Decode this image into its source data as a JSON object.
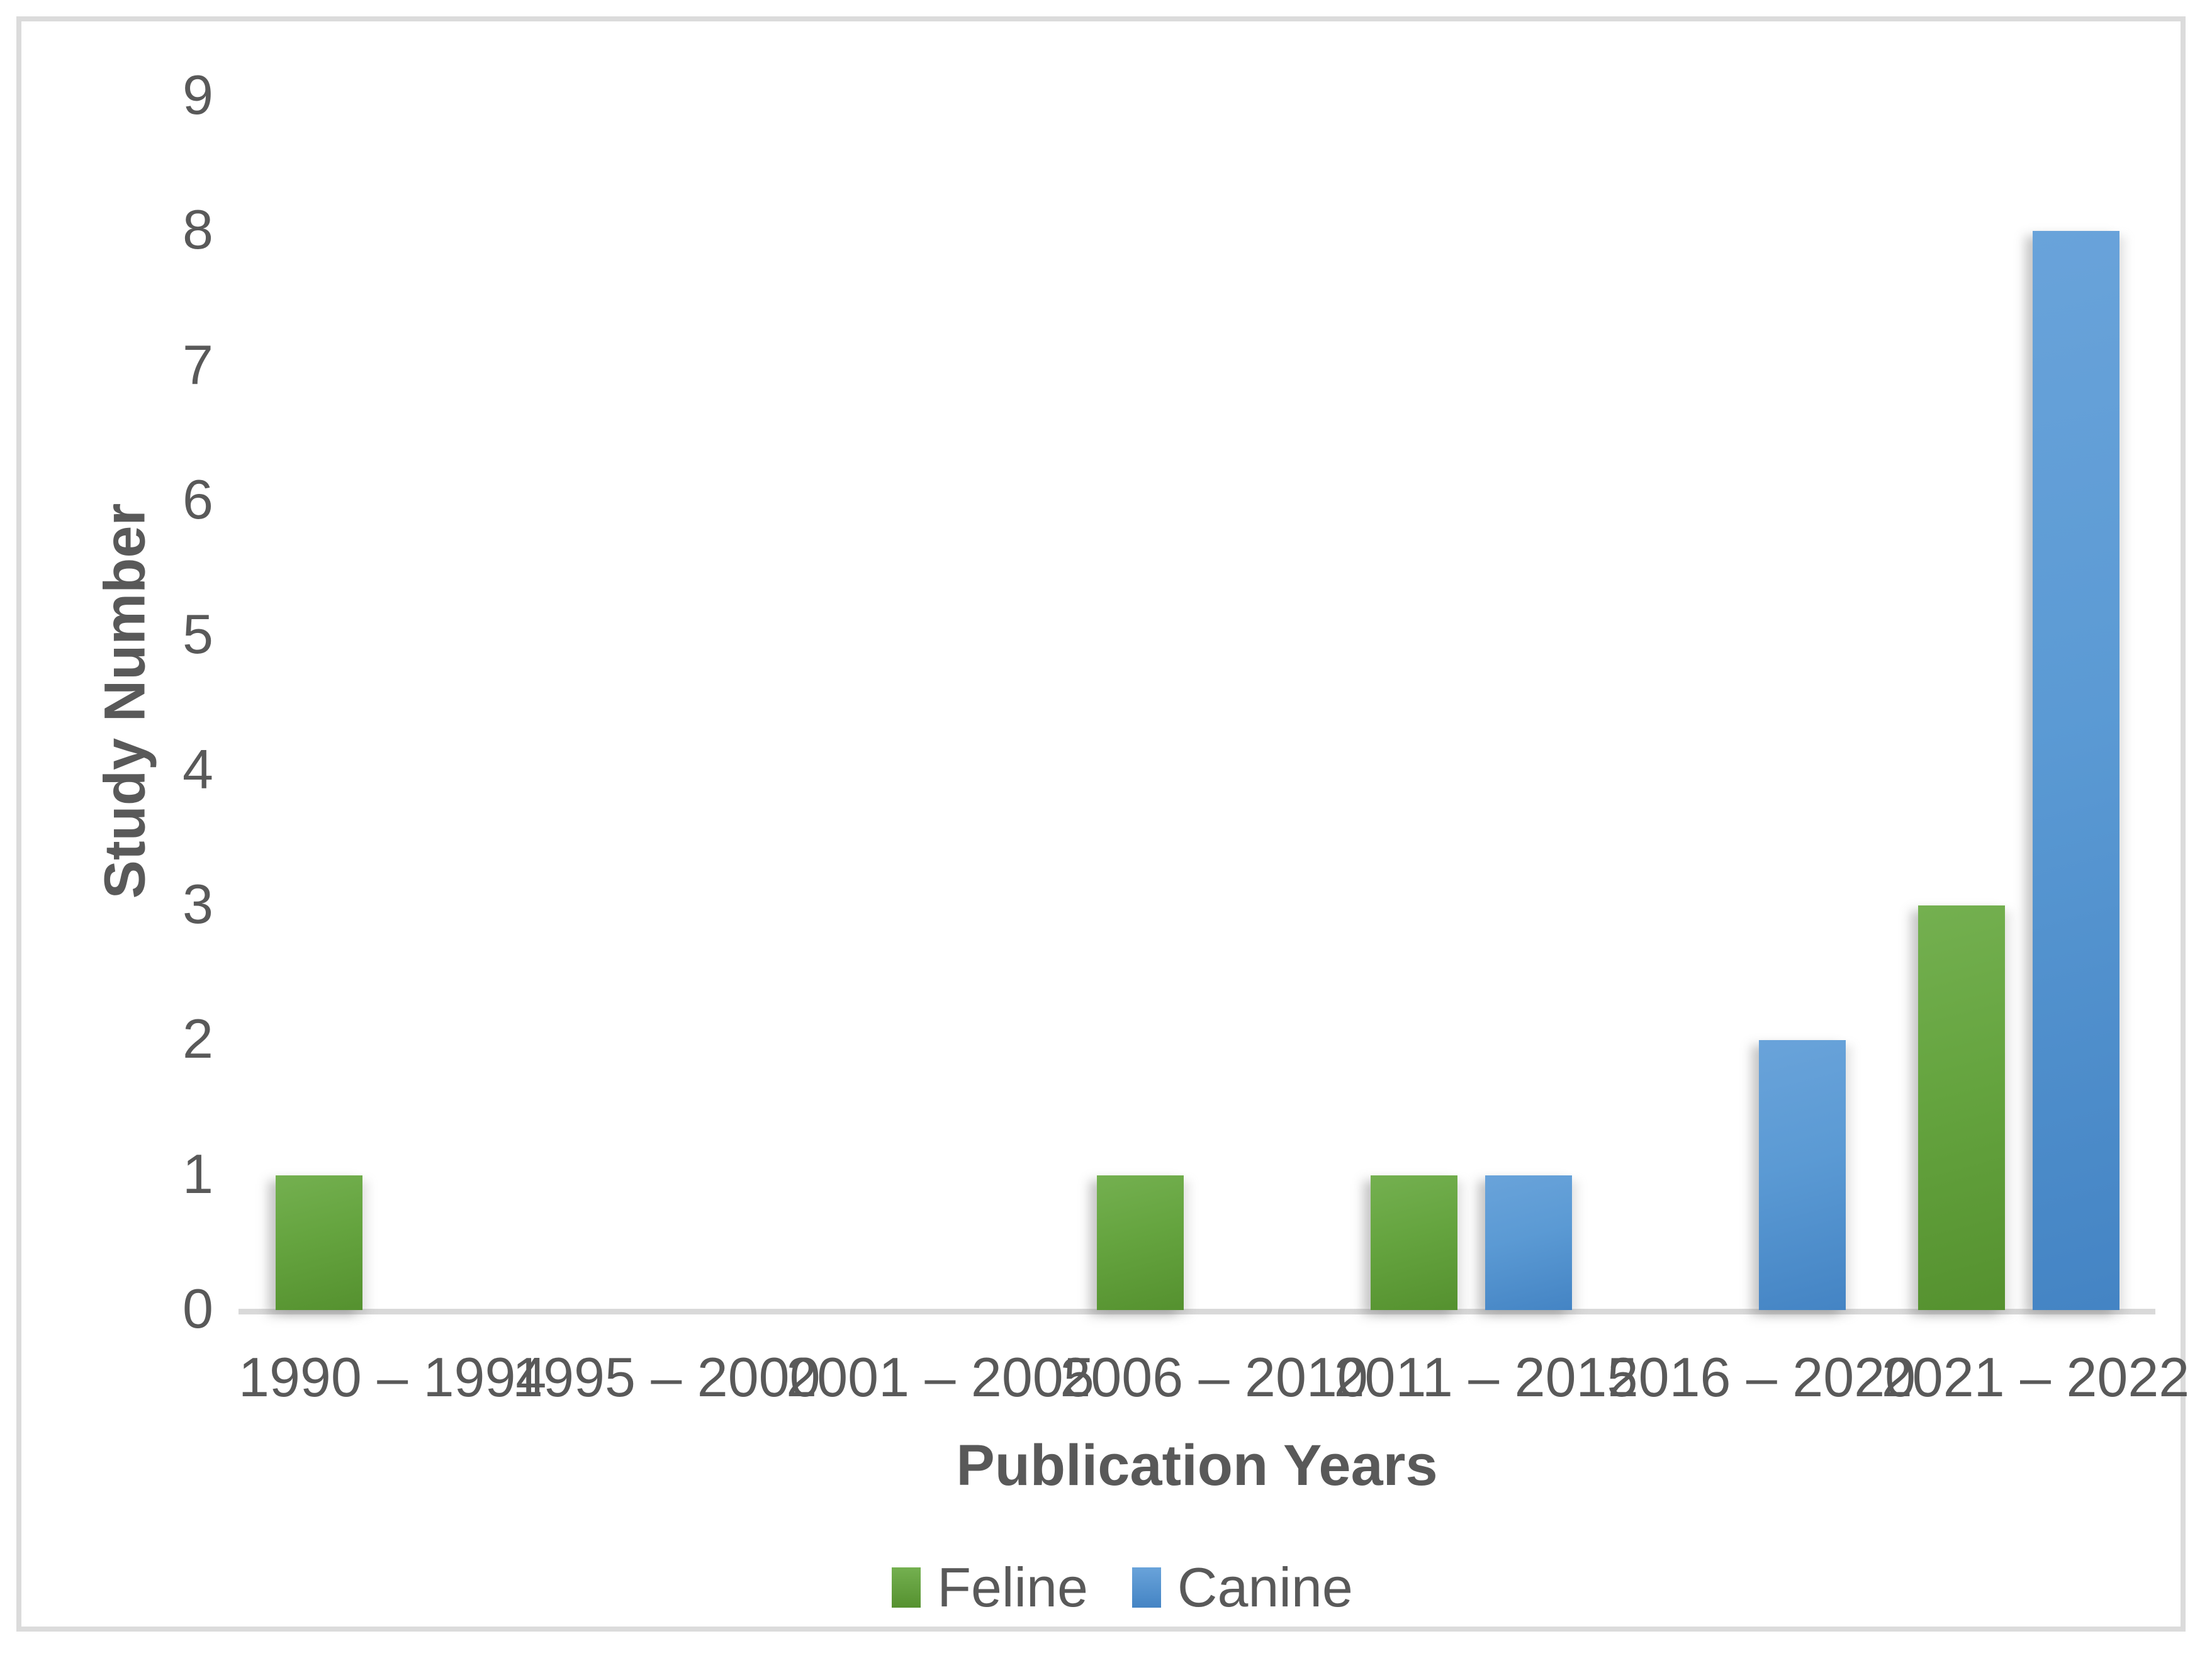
{
  "chart_data": {
    "type": "bar",
    "title": "",
    "categories": [
      "1990 – 1994",
      "1995 – 2000",
      "2001 – 2005",
      "2006 – 2010",
      "2011 – 2015",
      "2016 – 2020",
      "2021 – 2022"
    ],
    "series": [
      {
        "name": "Feline",
        "color": "#5f9c36",
        "values": [
          1,
          null,
          null,
          1,
          1,
          null,
          3
        ]
      },
      {
        "name": "Canine",
        "color": "#5091ce",
        "values": [
          null,
          null,
          null,
          null,
          1,
          2,
          8
        ]
      }
    ],
    "xlabel": "Publication Years",
    "ylabel": "Study Number",
    "y_ticks": [
      "0",
      "1",
      "2",
      "3",
      "4",
      "5",
      "6",
      "7",
      "8",
      "9"
    ],
    "ylim": [
      0,
      9
    ],
    "grid": false,
    "legend_position": "bottom",
    "bar_orientation": "vertical",
    "style_colors": {
      "axis_line": "#d9d9d9",
      "text": "#595959",
      "frame_border": "#dbdbdb",
      "background": "#ffffff"
    }
  }
}
